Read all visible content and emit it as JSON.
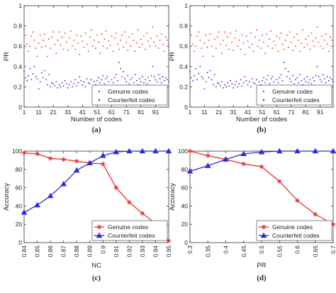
{
  "chart_data": [
    {
      "panel": "(a)",
      "type": "scatter",
      "xlabel": "Number of codes",
      "ylabel": "PR",
      "xlim": [
        1,
        100
      ],
      "ylim": [
        0,
        1
      ],
      "xticks": [
        "1",
        "11",
        "21",
        "31",
        "41",
        "51",
        "61",
        "71",
        "81",
        "91"
      ],
      "xtick_values": [
        1,
        11,
        21,
        31,
        41,
        51,
        61,
        71,
        81,
        91
      ],
      "yticks": [
        "0",
        "0.2",
        "0.4",
        "0.6",
        "0.8",
        "1"
      ],
      "ytick_values": [
        0,
        0.2,
        0.4,
        0.6,
        0.8,
        1
      ],
      "legend_position": "bottom-right",
      "series": [
        {
          "name": "Genuine codes",
          "color": "#e8302a",
          "marker": "dot",
          "x": [
            1,
            2,
            3,
            4,
            5,
            6,
            7,
            8,
            9,
            10,
            11,
            12,
            13,
            14,
            15,
            16,
            17,
            18,
            19,
            20,
            21,
            22,
            23,
            24,
            25,
            26,
            27,
            28,
            29,
            30,
            31,
            32,
            33,
            34,
            35,
            36,
            37,
            38,
            39,
            40,
            41,
            42,
            43,
            44,
            45,
            46,
            47,
            48,
            49,
            50,
            51,
            52,
            53,
            54,
            55,
            56,
            57,
            58,
            59,
            60,
            61,
            62,
            63,
            64,
            65,
            66,
            67,
            68,
            69,
            70,
            71,
            72,
            73,
            74,
            75,
            76,
            77,
            78,
            79,
            80,
            81,
            82,
            83,
            84,
            85,
            86,
            87,
            88,
            89,
            90,
            91,
            92,
            93,
            94,
            95,
            96,
            97,
            98,
            99,
            100
          ],
          "y": [
            0.76,
            0.71,
            0.62,
            0.55,
            0.6,
            0.7,
            0.74,
            0.66,
            0.58,
            0.5,
            0.63,
            0.71,
            0.59,
            0.66,
            0.72,
            0.6,
            0.5,
            0.67,
            0.58,
            0.69,
            0.74,
            0.62,
            0.53,
            0.66,
            0.74,
            0.61,
            0.69,
            0.57,
            0.73,
            0.64,
            0.56,
            0.68,
            0.75,
            0.6,
            0.66,
            0.57,
            0.71,
            0.63,
            0.52,
            0.7,
            0.65,
            0.59,
            0.73,
            0.62,
            0.55,
            0.69,
            0.76,
            0.6,
            0.66,
            0.58,
            0.71,
            0.64,
            0.53,
            0.72,
            0.6,
            0.67,
            0.75,
            0.58,
            0.65,
            0.61,
            0.7,
            0.55,
            0.68,
            0.73,
            0.62,
            0.57,
            0.66,
            0.71,
            0.59,
            0.74,
            0.64,
            0.56,
            0.69,
            0.6,
            0.72,
            0.66,
            0.55,
            0.63,
            0.76,
            0.59,
            0.67,
            0.62,
            0.7,
            0.57,
            0.73,
            0.65,
            0.6,
            0.68,
            0.79,
            0.64,
            0.6,
            0.7,
            0.58,
            0.66,
            0.72,
            0.62,
            0.55,
            0.69,
            0.66,
            0.6
          ]
        },
        {
          "name": "Counterfeit codes",
          "color": "#2b2bd9",
          "marker": "dot",
          "x": [
            1,
            2,
            3,
            4,
            5,
            6,
            7,
            8,
            9,
            10,
            11,
            12,
            13,
            14,
            15,
            16,
            17,
            18,
            19,
            20,
            21,
            22,
            23,
            24,
            25,
            26,
            27,
            28,
            29,
            30,
            31,
            32,
            33,
            34,
            35,
            36,
            37,
            38,
            39,
            40,
            41,
            42,
            43,
            44,
            45,
            46,
            47,
            48,
            49,
            50,
            51,
            52,
            53,
            54,
            55,
            56,
            57,
            58,
            59,
            60,
            61,
            62,
            63,
            64,
            65,
            66,
            67,
            68,
            69,
            70,
            71,
            72,
            73,
            74,
            75,
            76,
            77,
            78,
            79,
            80,
            81,
            82,
            83,
            84,
            85,
            86,
            87,
            88,
            89,
            90,
            91,
            92,
            93,
            94,
            95,
            96,
            97,
            98,
            99,
            100
          ],
          "y": [
            0.35,
            0.29,
            0.26,
            0.31,
            0.38,
            0.27,
            0.33,
            0.4,
            0.3,
            0.28,
            0.18,
            0.25,
            0.34,
            0.29,
            0.36,
            0.27,
            0.22,
            0.32,
            0.2,
            0.24,
            0.23,
            0.21,
            0.25,
            0.19,
            0.22,
            0.2,
            0.24,
            0.21,
            0.26,
            0.23,
            0.19,
            0.22,
            0.25,
            0.2,
            0.23,
            0.27,
            0.21,
            0.24,
            0.3,
            0.26,
            0.22,
            0.25,
            0.2,
            0.28,
            0.24,
            0.23,
            0.27,
            0.21,
            0.25,
            0.22,
            0.26,
            0.29,
            0.24,
            0.27,
            0.31,
            0.23,
            0.28,
            0.3,
            0.25,
            0.21,
            0.27,
            0.24,
            0.29,
            0.32,
            0.26,
            0.44,
            0.38,
            0.3,
            0.35,
            0.28,
            0.25,
            0.31,
            0.23,
            0.27,
            0.29,
            0.24,
            0.32,
            0.26,
            0.22,
            0.28,
            0.25,
            0.3,
            0.24,
            0.27,
            0.23,
            0.29,
            0.26,
            0.31,
            0.4,
            0.3,
            0.27,
            0.25,
            0.32,
            0.28,
            0.24,
            0.3,
            0.26,
            0.29,
            0.27,
            0.25
          ]
        }
      ]
    },
    {
      "panel": "(b)",
      "type": "scatter",
      "xlabel": "Number of codes",
      "ylabel": "PR",
      "xlim": [
        1,
        100
      ],
      "ylim": [
        0,
        1
      ],
      "xticks": [
        "1",
        "11",
        "21",
        "31",
        "41",
        "51",
        "61",
        "71",
        "81",
        "91"
      ],
      "xtick_values": [
        1,
        11,
        21,
        31,
        41,
        51,
        61,
        71,
        81,
        91
      ],
      "yticks": [
        "0",
        "0.2",
        "0.4",
        "0.6",
        "0.8",
        "1"
      ],
      "ytick_values": [
        0,
        0.2,
        0.4,
        0.6,
        0.8,
        1
      ],
      "legend_position": "bottom-right",
      "series": [
        {
          "name": "Genuine codes",
          "color": "#e8302a",
          "marker": "dot",
          "x": [
            1,
            2,
            3,
            4,
            5,
            6,
            7,
            8,
            9,
            10,
            11,
            12,
            13,
            14,
            15,
            16,
            17,
            18,
            19,
            20,
            21,
            22,
            23,
            24,
            25,
            26,
            27,
            28,
            29,
            30,
            31,
            32,
            33,
            34,
            35,
            36,
            37,
            38,
            39,
            40,
            41,
            42,
            43,
            44,
            45,
            46,
            47,
            48,
            49,
            50,
            51,
            52,
            53,
            54,
            55,
            56,
            57,
            58,
            59,
            60,
            61,
            62,
            63,
            64,
            65,
            66,
            67,
            68,
            69,
            70,
            71,
            72,
            73,
            74,
            75,
            76,
            77,
            78,
            79,
            80,
            81,
            82,
            83,
            84,
            85,
            86,
            87,
            88,
            89,
            90,
            91,
            92,
            93,
            94,
            95,
            96,
            97,
            98,
            99,
            100
          ],
          "y": [
            0.76,
            0.71,
            0.62,
            0.55,
            0.6,
            0.7,
            0.74,
            0.66,
            0.58,
            0.5,
            0.63,
            0.71,
            0.59,
            0.66,
            0.72,
            0.6,
            0.5,
            0.67,
            0.58,
            0.69,
            0.74,
            0.62,
            0.53,
            0.66,
            0.74,
            0.61,
            0.69,
            0.57,
            0.73,
            0.64,
            0.56,
            0.68,
            0.75,
            0.6,
            0.66,
            0.57,
            0.71,
            0.63,
            0.52,
            0.7,
            0.65,
            0.59,
            0.73,
            0.62,
            0.55,
            0.69,
            0.76,
            0.6,
            0.66,
            0.58,
            0.71,
            0.64,
            0.53,
            0.72,
            0.6,
            0.67,
            0.75,
            0.58,
            0.65,
            0.61,
            0.7,
            0.55,
            0.68,
            0.73,
            0.62,
            0.57,
            0.66,
            0.71,
            0.59,
            0.74,
            0.64,
            0.56,
            0.69,
            0.6,
            0.72,
            0.66,
            0.55,
            0.63,
            0.76,
            0.59,
            0.67,
            0.62,
            0.7,
            0.57,
            0.73,
            0.65,
            0.6,
            0.68,
            0.79,
            0.64,
            0.6,
            0.7,
            0.58,
            0.66,
            0.72,
            0.62,
            0.55,
            0.69,
            0.66,
            0.6
          ]
        },
        {
          "name": "Counterfeit codes",
          "color": "#2b2bd9",
          "marker": "dot",
          "x": [
            1,
            2,
            3,
            4,
            5,
            6,
            7,
            8,
            9,
            10,
            11,
            12,
            13,
            14,
            15,
            16,
            17,
            18,
            19,
            20,
            21,
            22,
            23,
            24,
            25,
            26,
            27,
            28,
            29,
            30,
            31,
            32,
            33,
            34,
            35,
            36,
            37,
            38,
            39,
            40,
            41,
            42,
            43,
            44,
            45,
            46,
            47,
            48,
            49,
            50,
            51,
            52,
            53,
            54,
            55,
            56,
            57,
            58,
            59,
            60,
            61,
            62,
            63,
            64,
            65,
            66,
            67,
            68,
            69,
            70,
            71,
            72,
            73,
            74,
            75,
            76,
            77,
            78,
            79,
            80,
            81,
            82,
            83,
            84,
            85,
            86,
            87,
            88,
            89,
            90,
            91,
            92,
            93,
            94,
            95,
            96,
            97,
            98,
            99,
            100
          ],
          "y": [
            0.35,
            0.29,
            0.26,
            0.31,
            0.38,
            0.27,
            0.33,
            0.4,
            0.3,
            0.28,
            0.18,
            0.25,
            0.34,
            0.29,
            0.36,
            0.27,
            0.22,
            0.32,
            0.2,
            0.24,
            0.23,
            0.21,
            0.25,
            0.19,
            0.22,
            0.2,
            0.24,
            0.21,
            0.26,
            0.23,
            0.19,
            0.22,
            0.25,
            0.2,
            0.23,
            0.27,
            0.21,
            0.24,
            0.3,
            0.26,
            0.22,
            0.25,
            0.2,
            0.28,
            0.24,
            0.23,
            0.27,
            0.21,
            0.25,
            0.22,
            0.26,
            0.29,
            0.24,
            0.27,
            0.31,
            0.23,
            0.28,
            0.3,
            0.25,
            0.21,
            0.27,
            0.24,
            0.29,
            0.32,
            0.26,
            0.44,
            0.38,
            0.3,
            0.35,
            0.28,
            0.25,
            0.31,
            0.23,
            0.27,
            0.29,
            0.24,
            0.32,
            0.26,
            0.22,
            0.28,
            0.25,
            0.3,
            0.24,
            0.27,
            0.23,
            0.29,
            0.26,
            0.31,
            0.4,
            0.3,
            0.27,
            0.25,
            0.32,
            0.28,
            0.24,
            0.3,
            0.26,
            0.29,
            0.27,
            0.25
          ]
        }
      ]
    },
    {
      "panel": "(c)",
      "type": "line",
      "xlabel": "NC",
      "ylabel": "Accuracy",
      "xlim": [
        0.84,
        0.95
      ],
      "ylim": [
        0,
        100
      ],
      "xticks": [
        "0.84",
        "0.85",
        "0.86",
        "0.87",
        "0.88",
        "0.89",
        "0.9",
        "0.91",
        "0.92",
        "0.93",
        "0.94",
        "0.95"
      ],
      "xtick_values": [
        0.84,
        0.85,
        0.86,
        0.87,
        0.88,
        0.89,
        0.9,
        0.91,
        0.92,
        0.93,
        0.94,
        0.95
      ],
      "yticks": [
        "0",
        "20",
        "40",
        "60",
        "80",
        "100"
      ],
      "ytick_values": [
        0,
        20,
        40,
        60,
        80,
        100
      ],
      "legend_position": "bottom-right",
      "series": [
        {
          "name": "Genuine codes",
          "color": "#e8302a",
          "marker": "star",
          "x": [
            0.84,
            0.85,
            0.86,
            0.87,
            0.88,
            0.89,
            0.9,
            0.91,
            0.92,
            0.93,
            0.94,
            0.95
          ],
          "y": [
            98,
            97,
            92,
            91,
            89,
            87,
            86,
            60,
            44,
            32,
            21,
            2
          ]
        },
        {
          "name": "Counterfeit codes",
          "color": "#2b2bd9",
          "marker": "triangle",
          "x": [
            0.84,
            0.85,
            0.86,
            0.87,
            0.88,
            0.89,
            0.9,
            0.91,
            0.92,
            0.93,
            0.94,
            0.95
          ],
          "y": [
            33,
            41,
            51,
            64,
            79,
            87,
            95,
            99,
            100,
            100,
            100,
            100
          ]
        }
      ]
    },
    {
      "panel": "(d)",
      "type": "line",
      "xlabel": "PR",
      "ylabel": "Accuracy",
      "xlim": [
        0.3,
        0.7
      ],
      "ylim": [
        0,
        100
      ],
      "xticks": [
        "0.3",
        "0.35",
        "0.4",
        "0.45",
        "0.5",
        "0.55",
        "0.6",
        "0.65",
        "0.7"
      ],
      "xtick_values": [
        0.3,
        0.35,
        0.4,
        0.45,
        0.5,
        0.55,
        0.6,
        0.65,
        0.7
      ],
      "yticks": [
        "0",
        "20",
        "40",
        "60",
        "80",
        "100"
      ],
      "ytick_values": [
        0,
        20,
        40,
        60,
        80,
        100
      ],
      "legend_position": "bottom-right",
      "series": [
        {
          "name": "Genuine codes",
          "color": "#e8302a",
          "marker": "star",
          "x": [
            0.3,
            0.35,
            0.4,
            0.45,
            0.5,
            0.55,
            0.6,
            0.65,
            0.7
          ],
          "y": [
            100,
            95,
            91,
            86,
            83,
            67,
            46,
            31,
            20
          ]
        },
        {
          "name": "Counterfeit codes",
          "color": "#2b2bd9",
          "marker": "triangle",
          "x": [
            0.3,
            0.35,
            0.4,
            0.45,
            0.5,
            0.55,
            0.6,
            0.65,
            0.7
          ],
          "y": [
            78,
            84,
            91,
            97,
            99,
            100,
            100,
            100,
            100
          ]
        }
      ]
    }
  ]
}
